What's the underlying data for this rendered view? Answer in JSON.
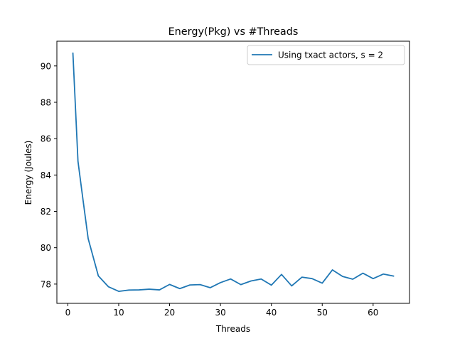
{
  "chart_data": {
    "type": "line",
    "title": "Energy(Pkg) vs #Threads",
    "xlabel": "Threads",
    "ylabel": "Energy (Joules)",
    "xlim": [
      -2.15,
      67.15
    ],
    "ylim": [
      76.94,
      91.36
    ],
    "xticks": [
      0,
      10,
      20,
      30,
      40,
      50,
      60
    ],
    "yticks": [
      78,
      80,
      82,
      84,
      86,
      88,
      90
    ],
    "grid": false,
    "legend_position": "top-right",
    "series": [
      {
        "name": "Using txact actors, s = 2",
        "color": "#1f77b4",
        "x": [
          1,
          2,
          3,
          4,
          6,
          8,
          10,
          12,
          14,
          16,
          18,
          20,
          22,
          24,
          26,
          28,
          30,
          32,
          34,
          36,
          38,
          40,
          42,
          44,
          46,
          48,
          50,
          52,
          54,
          56,
          58,
          60,
          62,
          64
        ],
        "y": [
          90.7,
          84.75,
          82.6,
          80.5,
          78.45,
          77.85,
          77.6,
          77.67,
          77.68,
          77.72,
          77.68,
          77.98,
          77.75,
          77.95,
          77.97,
          77.8,
          78.08,
          78.28,
          77.97,
          78.17,
          78.28,
          77.94,
          78.53,
          77.9,
          78.38,
          78.3,
          78.05,
          78.78,
          78.42,
          78.27,
          78.6,
          78.3,
          78.55,
          78.44
        ]
      }
    ]
  }
}
